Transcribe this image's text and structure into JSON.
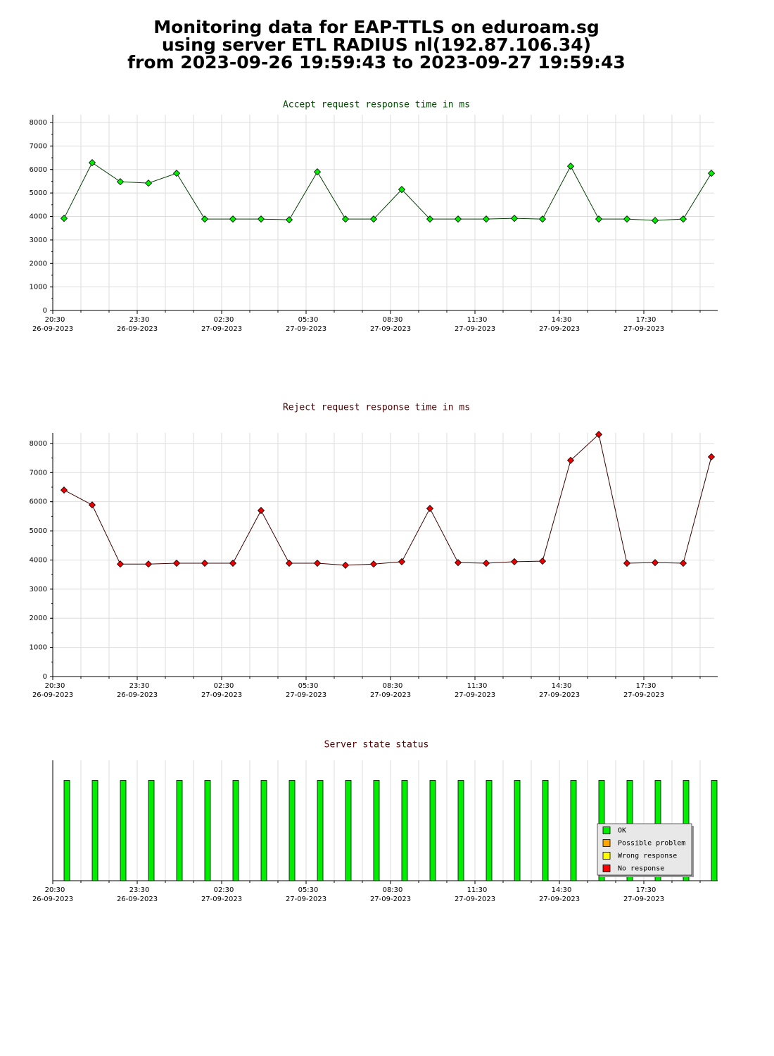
{
  "title": [
    "Monitoring data for EAP-TTLS on eduroam.sg",
    "using server ETL RADIUS nl(192.87.106.34)",
    "from 2023-09-26 19:59:43 to 2023-09-27 19:59:43"
  ],
  "chart_data": [
    {
      "type": "line",
      "title": "Accept request response time in ms",
      "title_color": "#005000",
      "x": [
        20.9,
        21.9,
        22.9,
        23.9,
        24.9,
        25.9,
        26.9,
        27.9,
        28.9,
        29.9,
        30.9,
        31.9,
        32.9,
        33.9,
        34.9,
        35.9,
        36.9,
        37.9,
        38.9,
        39.9,
        40.9,
        41.9,
        42.9,
        43.9
      ],
      "values": [
        3920,
        6290,
        5480,
        5420,
        5840,
        3890,
        3890,
        3890,
        3860,
        5900,
        3890,
        3890,
        5150,
        3890,
        3890,
        3890,
        3920,
        3890,
        6140,
        3890,
        3890,
        3830,
        3890,
        5840
      ],
      "color": "#004000",
      "marker_color": "#00ee00",
      "xlim": [
        20.5,
        44.0
      ],
      "xticks": [
        {
          "value": 20.5,
          "label": "20:30",
          "date": "26-09-2023"
        },
        {
          "value": 23.5,
          "label": "23:30",
          "date": "26-09-2023"
        },
        {
          "value": 26.5,
          "label": "02:30",
          "date": "27-09-2023"
        },
        {
          "value": 29.5,
          "label": "05:30",
          "date": "27-09-2023"
        },
        {
          "value": 32.5,
          "label": "08:30",
          "date": "27-09-2023"
        },
        {
          "value": 35.5,
          "label": "11:30",
          "date": "27-09-2023"
        },
        {
          "value": 38.5,
          "label": "14:30",
          "date": "27-09-2023"
        },
        {
          "value": 41.5,
          "label": "17:30",
          "date": "27-09-2023"
        }
      ],
      "ylim": [
        0,
        8330
      ],
      "yticks": [
        0,
        1000,
        2000,
        3000,
        4000,
        5000,
        6000,
        7000,
        8000
      ],
      "grid": true,
      "xgrid_step": 1,
      "yminor_step": 500
    },
    {
      "type": "line",
      "title": "Reject request response time in ms",
      "title_color": "#500000",
      "x": [
        20.9,
        21.9,
        22.9,
        23.9,
        24.9,
        25.9,
        26.9,
        27.9,
        28.9,
        29.9,
        30.9,
        31.9,
        32.9,
        33.9,
        34.9,
        35.9,
        36.9,
        37.9,
        38.9,
        39.9,
        40.9,
        41.9,
        42.9,
        43.9
      ],
      "values": [
        6400,
        5890,
        3860,
        3860,
        3890,
        3890,
        3890,
        5700,
        3890,
        3890,
        3820,
        3860,
        3940,
        5770,
        3910,
        3890,
        3940,
        3960,
        7420,
        8310,
        3890,
        3910,
        3890,
        7540
      ],
      "color": "#400000",
      "marker_color": "#ee0000",
      "xlim": [
        20.5,
        44.0
      ],
      "xticks": [
        {
          "value": 20.5,
          "label": "20:30",
          "date": "26-09-2023"
        },
        {
          "value": 23.5,
          "label": "23:30",
          "date": "26-09-2023"
        },
        {
          "value": 26.5,
          "label": "02:30",
          "date": "27-09-2023"
        },
        {
          "value": 29.5,
          "label": "05:30",
          "date": "27-09-2023"
        },
        {
          "value": 32.5,
          "label": "08:30",
          "date": "27-09-2023"
        },
        {
          "value": 35.5,
          "label": "11:30",
          "date": "27-09-2023"
        },
        {
          "value": 38.5,
          "label": "14:30",
          "date": "27-09-2023"
        },
        {
          "value": 41.5,
          "label": "17:30",
          "date": "27-09-2023"
        }
      ],
      "ylim": [
        0,
        8360
      ],
      "yticks": [
        0,
        1000,
        2000,
        3000,
        4000,
        5000,
        6000,
        7000,
        8000
      ],
      "grid": true,
      "xgrid_step": 1,
      "yminor_step": 500
    },
    {
      "type": "bar",
      "title": "Server state status",
      "title_color": "#500000",
      "x": [
        20.9,
        21.9,
        22.9,
        23.9,
        24.9,
        25.9,
        26.9,
        27.9,
        28.9,
        29.9,
        30.9,
        31.9,
        32.9,
        33.9,
        34.9,
        35.9,
        36.9,
        37.9,
        38.9,
        39.9,
        40.9,
        41.9,
        42.9,
        43.9
      ],
      "values": [
        1,
        1,
        1,
        1,
        1,
        1,
        1,
        1,
        1,
        1,
        1,
        1,
        1,
        1,
        1,
        1,
        1,
        1,
        1,
        1,
        1,
        1,
        1,
        1
      ],
      "color": "#00ee00",
      "xlim": [
        20.5,
        44.0
      ],
      "xticks": [
        {
          "value": 20.5,
          "label": "20:30",
          "date": "26-09-2023"
        },
        {
          "value": 23.5,
          "label": "23:30",
          "date": "26-09-2023"
        },
        {
          "value": 26.5,
          "label": "02:30",
          "date": "27-09-2023"
        },
        {
          "value": 29.5,
          "label": "05:30",
          "date": "27-09-2023"
        },
        {
          "value": 32.5,
          "label": "08:30",
          "date": "27-09-2023"
        },
        {
          "value": 35.5,
          "label": "11:30",
          "date": "27-09-2023"
        },
        {
          "value": 38.5,
          "label": "14:30",
          "date": "27-09-2023"
        },
        {
          "value": 41.5,
          "label": "17:30",
          "date": "27-09-2023"
        }
      ],
      "ylim": [
        0,
        1.2
      ],
      "grid": true,
      "xgrid_step": 1,
      "legend": [
        {
          "name": "OK",
          "color": "#00ee00"
        },
        {
          "name": "Possible problem",
          "color": "#ffa500"
        },
        {
          "name": "Wrong response",
          "color": "#ffff00"
        },
        {
          "name": "No response",
          "color": "#ff0000"
        }
      ],
      "legend_position": "lower right"
    }
  ]
}
